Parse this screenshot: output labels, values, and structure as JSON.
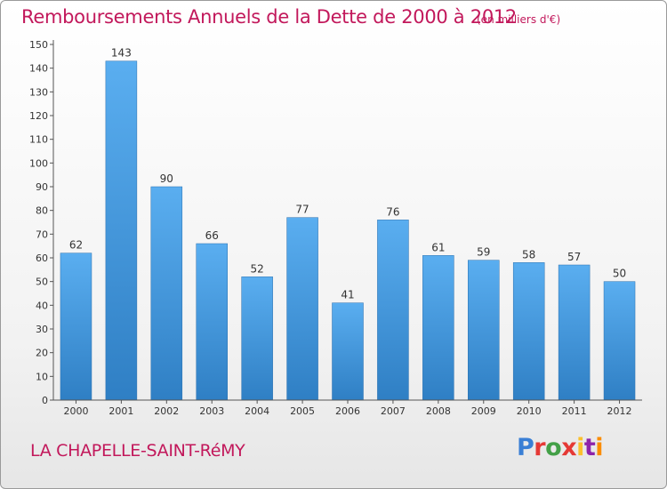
{
  "chart_data": {
    "type": "bar",
    "title": "Remboursements Annuels de la Dette de 2000 à 2012",
    "subtitle": "(en milliers d'€)",
    "categories": [
      "2000",
      "2001",
      "2002",
      "2003",
      "2004",
      "2005",
      "2006",
      "2007",
      "2008",
      "2009",
      "2010",
      "2011",
      "2012"
    ],
    "values": [
      62,
      143,
      90,
      66,
      52,
      77,
      41,
      76,
      61,
      59,
      58,
      57,
      50
    ],
    "ylim": [
      0,
      150
    ],
    "yticks": [
      0,
      10,
      20,
      30,
      40,
      50,
      60,
      70,
      80,
      90,
      100,
      110,
      120,
      130,
      140,
      150
    ],
    "grid": false,
    "bar_color": "#4a9fe0"
  },
  "place_name": "LA CHAPELLE-SAINT-RéMY",
  "logo": {
    "letters": [
      "P",
      "r",
      "o",
      "x",
      "i",
      "t",
      "i"
    ]
  }
}
